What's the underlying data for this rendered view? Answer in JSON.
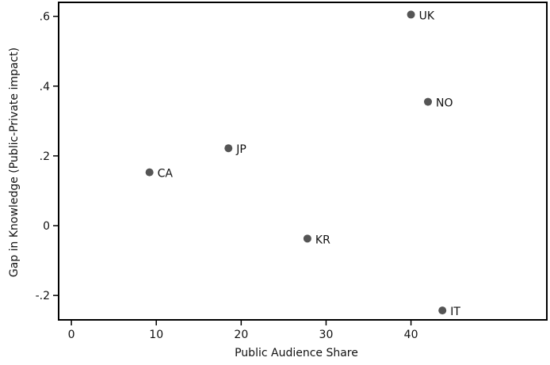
{
  "chart_data": {
    "type": "scatter",
    "title": "",
    "xlabel": "Public Audience Share",
    "ylabel": "Gap in Knowledge (Public-Private impact)",
    "xlim": [
      -1.5,
      56
    ],
    "ylim": [
      -0.27,
      0.64
    ],
    "xticks": [
      0,
      10,
      20,
      30,
      40
    ],
    "xtick_labels": [
      "0",
      "10",
      "20",
      "30",
      "40"
    ],
    "yticks": [
      -0.2,
      0,
      0.2,
      0.4,
      0.6
    ],
    "ytick_labels": [
      "-.2",
      "0",
      ".2",
      ".4",
      ".6"
    ],
    "grid": false,
    "legend": "none",
    "marker_color": "#555555",
    "points": [
      {
        "label": "UK",
        "x": 40.0,
        "y": 0.605
      },
      {
        "label": "NO",
        "x": 42.0,
        "y": 0.355
      },
      {
        "label": "JP",
        "x": 18.5,
        "y": 0.222
      },
      {
        "label": "CA",
        "x": 9.2,
        "y": 0.153
      },
      {
        "label": "KR",
        "x": 27.8,
        "y": -0.037
      },
      {
        "label": "IT",
        "x": 43.7,
        "y": -0.243
      }
    ]
  }
}
